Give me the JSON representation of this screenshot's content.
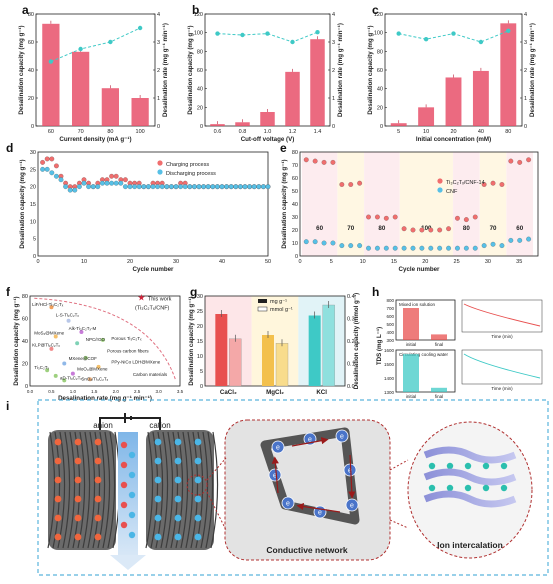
{
  "colors": {
    "bar": "#e8506a",
    "rate": "#3ec9c6",
    "charge": "#f06e6e",
    "discharge": "#57c0e6",
    "mgg": "#e8504f",
    "mmol": "#f4a8a8"
  },
  "chart_data": [
    {
      "panel": "a",
      "type": "bar+line",
      "xlabel": "Current density (mA g⁻¹)",
      "ylabel": "Desalination capacity (mg g⁻¹)",
      "y2label": "Desalination rate (mg g⁻¹ min⁻¹)",
      "categories": [
        "60",
        "70",
        "80",
        "100"
      ],
      "values": [
        73,
        53,
        27,
        20
      ],
      "rate": [
        2.3,
        2.75,
        3.0,
        3.5
      ],
      "ylim": [
        0,
        80
      ],
      "y2lim": [
        0,
        4
      ],
      "yticks": [
        "0",
        "20",
        "40",
        "60",
        "80"
      ],
      "y2ticks": [
        "0",
        "1",
        "2",
        "3",
        "4"
      ]
    },
    {
      "panel": "b",
      "type": "bar+line",
      "xlabel": "Cut-off voltage (V)",
      "ylabel": "Desalination capacity (mg g⁻¹)",
      "y2label": "Desalination rate (mg g⁻¹ min⁻¹)",
      "categories": [
        "0.6",
        "0.8",
        "1.0",
        "1.2",
        "1.4"
      ],
      "values": [
        2,
        4,
        15,
        58,
        93
      ],
      "rate": [
        3.3,
        3.25,
        3.3,
        3.0,
        3.35
      ],
      "ylim": [
        0,
        120
      ],
      "y2lim": [
        0,
        4
      ],
      "yticks": [
        "0",
        "20",
        "40",
        "60",
        "80",
        "100",
        "120"
      ],
      "y2ticks": [
        "0",
        "1",
        "2",
        "3",
        "4"
      ]
    },
    {
      "panel": "c",
      "type": "bar+line",
      "xlabel": "Initial concentration (mM)",
      "ylabel": "Desalination capacity (mg g⁻¹)",
      "y2label": "Desalination rate (mg g⁻¹ min⁻¹)",
      "categories": [
        "5",
        "10",
        "20",
        "40",
        "80"
      ],
      "values": [
        3,
        20,
        52,
        59,
        110
      ],
      "rate": [
        3.3,
        3.1,
        3.3,
        3.0,
        3.4
      ],
      "ylim": [
        0,
        120
      ],
      "y2lim": [
        0,
        4
      ],
      "yticks": [
        "0",
        "20",
        "40",
        "60",
        "80",
        "100",
        "120"
      ],
      "y2ticks": [
        "0",
        "1",
        "2",
        "3",
        "4"
      ]
    },
    {
      "panel": "d",
      "type": "scatter",
      "xlabel": "Cycle number",
      "ylabel": "Desalination capacity (mg g⁻¹)",
      "xlim": [
        0,
        50
      ],
      "ylim": [
        0,
        30
      ],
      "xticks": [
        "0",
        "10",
        "20",
        "30",
        "40",
        "50"
      ],
      "yticks": [
        "0",
        "5",
        "10",
        "15",
        "20",
        "25",
        "30"
      ],
      "series": [
        {
          "name": "Charging process",
          "values": [
            27,
            28,
            28,
            26,
            23,
            21,
            20,
            20,
            21,
            22,
            21,
            20,
            21,
            22,
            22,
            23,
            23,
            22,
            22,
            21,
            21,
            21,
            20,
            20,
            21,
            21,
            21,
            20,
            20,
            20,
            21,
            21,
            20,
            20,
            20,
            20,
            20,
            20,
            20,
            20,
            20,
            20,
            20,
            20,
            20,
            20,
            20,
            20,
            20,
            20
          ]
        },
        {
          "name": "Discharging process",
          "values": [
            25,
            25,
            24,
            23,
            22,
            20,
            19,
            19,
            20,
            21,
            20,
            20,
            20,
            21,
            21,
            21,
            21,
            21,
            20,
            20,
            20,
            20,
            20,
            20,
            20,
            20,
            20,
            20,
            20,
            20,
            20,
            20,
            20,
            20,
            20,
            20,
            20,
            20,
            20,
            20,
            20,
            20,
            20,
            20,
            20,
            20,
            20,
            20,
            20,
            20
          ]
        }
      ]
    },
    {
      "panel": "e",
      "type": "scatter",
      "xlabel": "Cycle number",
      "ylabel": "Desalination capacity (mg g⁻¹)",
      "xlim": [
        0,
        38
      ],
      "ylim": [
        0,
        80
      ],
      "xticks": [
        "0",
        "5",
        "10",
        "15",
        "20",
        "25",
        "30",
        "35"
      ],
      "yticks": [
        "0",
        "10",
        "20",
        "30",
        "40",
        "50",
        "60",
        "70",
        "80"
      ],
      "segment_labels": [
        "60",
        "70",
        "80",
        "100",
        "80",
        "70",
        "60"
      ],
      "series": [
        {
          "name": "Ti₃C₂Tₓ/CNF-14",
          "values": [
            74,
            73,
            72,
            72,
            55,
            55,
            56,
            30,
            30,
            29,
            30,
            21,
            20,
            20,
            20,
            20,
            21,
            29,
            28,
            30,
            55,
            56,
            55,
            73,
            72,
            74
          ]
        },
        {
          "name": "CNF",
          "values": [
            11,
            11,
            10,
            10,
            8,
            8,
            8,
            6,
            6,
            6,
            6,
            6,
            6,
            6,
            6,
            6,
            6,
            6,
            6,
            6,
            8,
            9,
            8,
            12,
            12,
            13
          ]
        }
      ]
    },
    {
      "panel": "f",
      "type": "scatter",
      "xlabel": "Desalination rate (mg g⁻¹ min⁻¹)",
      "ylabel": "Desalination capacity (mg g⁻¹)",
      "xlim": [
        0,
        3.5
      ],
      "ylim": [
        0,
        80
      ],
      "xticks": [
        "0.0",
        "0.5",
        "1.0",
        "1.5",
        "2.0",
        "2.5",
        "3.0",
        "3.5"
      ],
      "yticks": [
        "0",
        "20",
        "40",
        "60",
        "80"
      ],
      "highlight": "This work",
      "highlight_sub": "(Ti₃C₂Tₓ/CNF)",
      "labels": [
        "LiF/HCl-Ti₃C₂Tₓ",
        "L-S-Ti₃C₂Tₓ",
        "Alk-Ti₃C₂Tₓ-M",
        "Porous Ti₃C₂Tₓ",
        "MoS₂@MXene",
        "NPC/rGO",
        "KLP@Ti₃C₂Tₓ",
        "Porous carbon fibers",
        "MXene@COF",
        "PPy-NiCo LDH@MXene",
        "MoO₃@MXene",
        "Carbon materials",
        "Ti₃C₂Tₓ",
        "aD-Ti₃C₂Tₓ",
        "SnO₂/Ti₃C₂Tₓ"
      ]
    },
    {
      "panel": "g",
      "type": "bar",
      "ylabel": "Desalination capacity (mg g⁻¹)",
      "y2label": "Desalination capacity (mmol g⁻¹)",
      "categories": [
        "CaCl₂",
        "MgCl₂",
        "KCl"
      ],
      "legend": [
        "mg g⁻¹",
        "mmol g⁻¹"
      ],
      "mg": [
        24,
        17,
        23.5
      ],
      "mmol": [
        0.21,
        0.19,
        0.36
      ],
      "ylim": [
        0,
        30
      ],
      "y2lim": [
        0,
        0.4
      ],
      "yticks": [
        "0",
        "5",
        "10",
        "15",
        "20",
        "25",
        "30"
      ],
      "y2ticks": [
        "0.0",
        "0.1",
        "0.2",
        "0.3",
        "0.4"
      ]
    },
    {
      "panel": "h",
      "type": "bar",
      "ylabel": "TDS (mg L⁻¹)",
      "top": {
        "title": "Mixed ion solution",
        "categories": [
          "initial",
          "final"
        ],
        "values": [
          700,
          370
        ],
        "ylim": [
          300,
          800
        ],
        "yticks": [
          "300",
          "400",
          "500",
          "600",
          "700",
          "800"
        ]
      },
      "bottom": {
        "title": "Circulating cooling water",
        "categories": [
          "initial",
          "final"
        ],
        "values": [
          1570,
          1330
        ],
        "ylim": [
          1300,
          1600
        ],
        "yticks": [
          "1300",
          "1400",
          "1500",
          "1600"
        ]
      },
      "inset_xlabel": "Time (min)"
    }
  ],
  "diagram_i": {
    "anion": "anion",
    "cation": "cation",
    "conductive": "Conductive network",
    "intercalation": "Ion intercalation",
    "electron": "e"
  },
  "panels": [
    "a",
    "b",
    "c",
    "d",
    "e",
    "f",
    "g",
    "h",
    "i"
  ]
}
